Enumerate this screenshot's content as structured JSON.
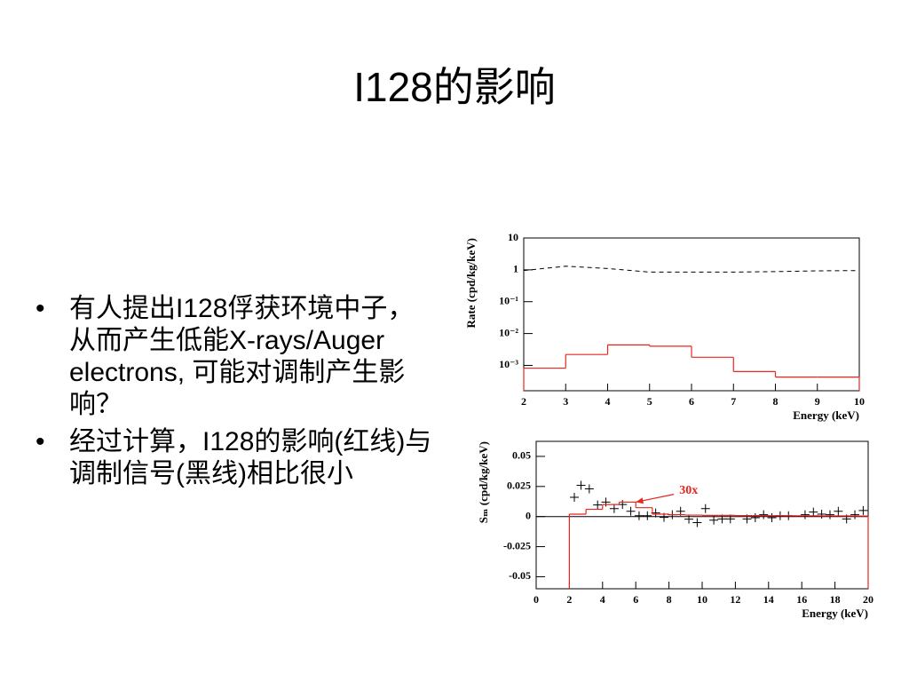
{
  "title": "I128的影响",
  "bullets": [
    "有人提出I128俘获环境中子，从而产生低能X-rays/Auger electrons, 可能对调制产生影响？",
    "经过计算，I128的影响(红线)与调制信号(黑线)相比很小"
  ],
  "chart_data": [
    {
      "type": "line",
      "ylog": true,
      "xlabel": "Energy (keV)",
      "ylabel": "Rate (cpd/kg/keV)",
      "xlim": [
        2,
        10
      ],
      "xticks": [
        2,
        3,
        4,
        5,
        6,
        7,
        8,
        9,
        10
      ],
      "ylim": [
        0.00016,
        10
      ],
      "yticks": [
        10,
        1,
        {
          "value": 0.1,
          "label": "10⁻¹"
        },
        {
          "value": 0.01,
          "label": "10⁻²"
        },
        {
          "value": 0.001,
          "label": "10⁻³"
        }
      ],
      "series": [
        {
          "color": "#000000",
          "linestyle": "dashed",
          "x": [
            2,
            3,
            4,
            5,
            6,
            7,
            8,
            9,
            10
          ],
          "values": [
            0.95,
            1.3,
            1.1,
            0.85,
            0.85,
            0.85,
            0.88,
            0.93,
            0.95
          ]
        },
        {
          "color": "#e8261e",
          "linestyle": "solid",
          "bins": [
            2,
            3,
            4,
            5,
            6,
            7,
            8,
            9,
            10
          ],
          "values": [
            0.00082,
            0.0022,
            0.0044,
            0.004,
            0.0018,
            0.00064,
            0.00043,
            0.00043
          ]
        }
      ]
    },
    {
      "type": "line",
      "ylog": false,
      "xlabel": "Energy (keV)",
      "ylabel": "Sₘ (cpd/kg/keV)",
      "xlim": [
        0,
        20
      ],
      "xticks": [
        0,
        2,
        4,
        6,
        8,
        10,
        12,
        14,
        16,
        18,
        20
      ],
      "ylim": [
        -0.06,
        0.0625
      ],
      "yticks": [
        0.05,
        0.025,
        0,
        -0.025,
        -0.05
      ],
      "zero_line": true,
      "series": [
        {
          "color": "#000000",
          "marker": "+",
          "x": [
            2.3,
            2.7,
            3.2,
            3.7,
            4.2,
            4.7,
            5.2,
            5.7,
            6.2,
            6.7,
            7.2,
            7.7,
            8.2,
            8.7,
            9.2,
            9.7,
            10.2,
            10.7,
            11.2,
            11.7,
            12.7,
            13.2,
            13.7,
            14.2,
            14.7,
            15.2,
            16.2,
            16.7,
            17.2,
            17.7,
            18.2,
            18.7,
            19.2,
            19.7
          ],
          "values": [
            0.016,
            0.026,
            0.023,
            0.0096,
            0.012,
            0.0066,
            0.01,
            0.0044,
            0.0007,
            0.0007,
            0.003,
            -0.0007,
            0.0015,
            0.0044,
            -0.0022,
            -0.005,
            0.0066,
            -0.003,
            -0.002,
            -0.002,
            -0.002,
            -0.001,
            0.0015,
            -0.001,
            0.0007,
            0.0007,
            0.0015,
            0.0037,
            0.002,
            0.0015,
            0.0044,
            -0.002,
            0.0015,
            0.005
          ]
        },
        {
          "color": "#e8261e",
          "linestyle": "solid",
          "bins": [
            2,
            3,
            4,
            5,
            6,
            7,
            8,
            9,
            10,
            11,
            12,
            13,
            14,
            15,
            16,
            17,
            18,
            19,
            20
          ],
          "values": [
            0.002,
            0.006,
            0.01,
            0.012,
            0.0074,
            0.002,
            0.0015,
            0.0012,
            0.001,
            0.001,
            0.0008,
            0.0008,
            0.0007,
            0.0006,
            0.0006,
            0.0005,
            0.0005,
            0.0004
          ]
        }
      ],
      "annotations": [
        {
          "text": "30x",
          "color": "#e8261e",
          "xy": [
            6,
            0.012
          ],
          "xytext": [
            8.3,
            0.0185
          ]
        }
      ]
    }
  ]
}
